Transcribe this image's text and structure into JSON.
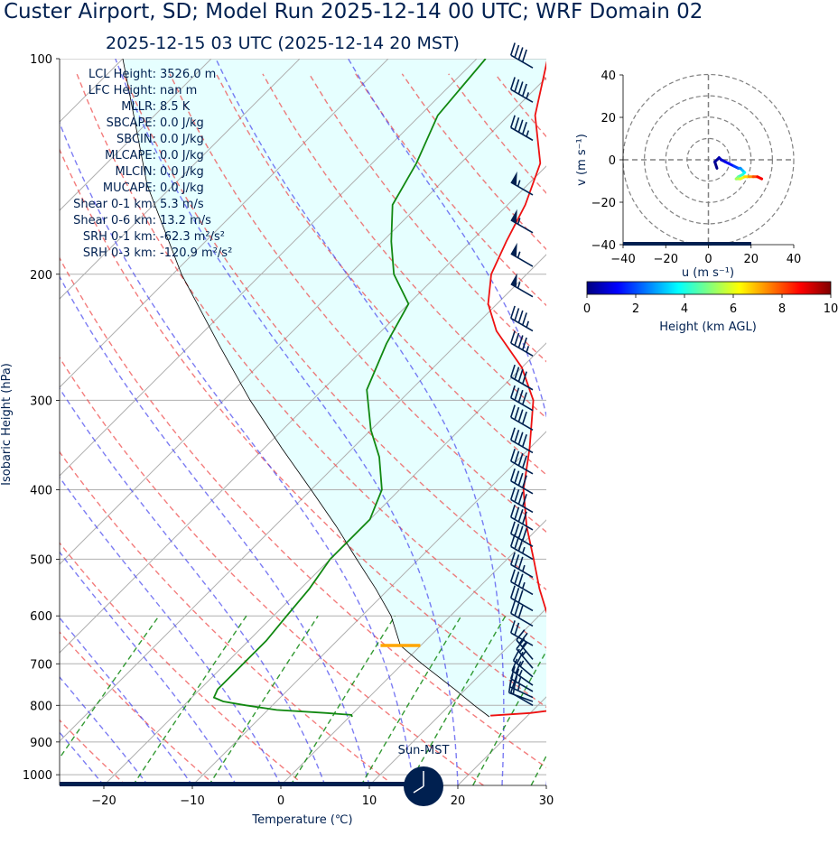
{
  "header": {
    "title": "Custer Airport, SD; Model Run 2025-12-14 00 UTC; WRF Domain 02",
    "subtitle": "2025-12-15 03 UTC  (2025-12-14 20 MST)"
  },
  "stats": [
    {
      "label": "LCL Height:",
      "value": "3526.0 m"
    },
    {
      "label": "LFC Height:",
      "value": "nan m"
    },
    {
      "label": "MLLR:",
      "value": "8.5 K"
    },
    {
      "label": "SBCAPE:",
      "value": "0.0 J/kg"
    },
    {
      "label": "SBCIN:",
      "value": "0.0 J/kg"
    },
    {
      "label": "MLCAPE:",
      "value": "0.0 J/kg"
    },
    {
      "label": "MLCIN:",
      "value": "0.0 J/kg"
    },
    {
      "label": "MUCAPE:",
      "value": "0.0 J/kg"
    },
    {
      "label": "Shear 0-1 km:",
      "value": "5.3 m/s"
    },
    {
      "label": "Shear 0-6 km:",
      "value": "13.2 m/s"
    },
    {
      "label": "SRH 0-1 km:",
      "value": "-62.3 m²/s²"
    },
    {
      "label": "SRH 0-3 km:",
      "value": "-120.9 m²/s²"
    }
  ],
  "clock_label": "Sun-MST",
  "colors": {
    "temperature": "#ee1111",
    "dewpoint": "#118811",
    "parcel": "#000000",
    "dry_adiabat": "#ee4444",
    "moist_adiabat": "#4444ee",
    "mixing_ratio": "#118811",
    "cape_shade": "#e6ffff",
    "lcl_marker": "#ffa500",
    "barb": "#002050",
    "text": "#002050"
  },
  "chart_data": [
    {
      "type": "line",
      "name": "skew-t",
      "xlabel": "Temperature (℃)",
      "ylabel": "Isobaric Height (hPa)",
      "xlim": [
        -25,
        30
      ],
      "ylim": [
        1035,
        100
      ],
      "y_scale": "log",
      "skew": 45,
      "xticks": [
        -20,
        -10,
        0,
        10,
        20,
        30
      ],
      "yticks": [
        100,
        200,
        300,
        400,
        500,
        600,
        700,
        800,
        900,
        1000
      ],
      "grid": true,
      "series": [
        {
          "key": "temperature",
          "p": [
            827,
            820,
            810,
            795,
            780,
            765,
            740,
            700,
            650,
            600,
            550,
            500,
            450,
            400,
            350,
            300,
            270,
            240,
            220,
            200,
            180,
            160,
            140,
            120,
            100
          ],
          "t": [
            15.8,
            20,
            23,
            25.2,
            25,
            23.5,
            21,
            18,
            14.5,
            11,
            7,
            3,
            -1.5,
            -6,
            -10,
            -15,
            -20,
            -27,
            -31,
            -34,
            -36,
            -38,
            -41,
            -47,
            -52
          ]
        },
        {
          "key": "dewpoint",
          "p": [
            830,
            825,
            820,
            812,
            800,
            790,
            780,
            760,
            700,
            650,
            600,
            550,
            500,
            470,
            440,
            400,
            360,
            330,
            290,
            250,
            220,
            200,
            180,
            160,
            140,
            120,
            100
          ],
          "t": [
            0.3,
            0,
            -3,
            -9,
            -13,
            -16,
            -17.5,
            -18,
            -18,
            -18,
            -18.5,
            -19,
            -20,
            -20,
            -20,
            -22,
            -26,
            -30,
            -35,
            -38,
            -40,
            -45,
            -49,
            -53,
            -55,
            -58,
            -59
          ]
        },
        {
          "key": "parcel",
          "p": [
            830,
            800,
            760,
            700,
            660,
            600,
            550,
            500,
            450,
            400,
            350,
            300,
            250,
            200,
            150,
            100
          ],
          "t": [
            15.8,
            12.8,
            8.8,
            2.2,
            -2.3,
            -6.7,
            -11.5,
            -17,
            -23,
            -30,
            -38,
            -47,
            -57,
            -69,
            -83,
            -100
          ]
        }
      ],
      "lcl": {
        "p": 660,
        "t": -2.3
      },
      "wind_barbs": [
        {
          "p": 800,
          "speed_kt": 10,
          "dir": 300
        },
        {
          "p": 790,
          "speed_kt": 20,
          "dir": 290
        },
        {
          "p": 780,
          "speed_kt": 25,
          "dir": 295
        },
        {
          "p": 765,
          "speed_kt": 25,
          "dir": 300
        },
        {
          "p": 750,
          "speed_kt": 25,
          "dir": 305
        },
        {
          "p": 730,
          "speed_kt": 25,
          "dir": 310
        },
        {
          "p": 710,
          "speed_kt": 25,
          "dir": 320
        },
        {
          "p": 690,
          "speed_kt": 25,
          "dir": 320
        },
        {
          "p": 660,
          "speed_kt": 20,
          "dir": 300
        },
        {
          "p": 620,
          "speed_kt": 30,
          "dir": 300
        },
        {
          "p": 590,
          "speed_kt": 30,
          "dir": 300
        },
        {
          "p": 560,
          "speed_kt": 35,
          "dir": 300
        },
        {
          "p": 530,
          "speed_kt": 35,
          "dir": 300
        },
        {
          "p": 500,
          "speed_kt": 35,
          "dir": 300
        },
        {
          "p": 480,
          "speed_kt": 40,
          "dir": 300
        },
        {
          "p": 455,
          "speed_kt": 40,
          "dir": 300
        },
        {
          "p": 430,
          "speed_kt": 40,
          "dir": 300
        },
        {
          "p": 405,
          "speed_kt": 40,
          "dir": 300
        },
        {
          "p": 380,
          "speed_kt": 40,
          "dir": 300
        },
        {
          "p": 355,
          "speed_kt": 40,
          "dir": 300
        },
        {
          "p": 330,
          "speed_kt": 40,
          "dir": 300
        },
        {
          "p": 310,
          "speed_kt": 40,
          "dir": 300
        },
        {
          "p": 290,
          "speed_kt": 40,
          "dir": 300
        },
        {
          "p": 260,
          "speed_kt": 45,
          "dir": 300
        },
        {
          "p": 240,
          "speed_kt": 45,
          "dir": 300
        },
        {
          "p": 215,
          "speed_kt": 55,
          "dir": 300
        },
        {
          "p": 195,
          "speed_kt": 55,
          "dir": 300
        },
        {
          "p": 175,
          "speed_kt": 55,
          "dir": 300
        },
        {
          "p": 155,
          "speed_kt": 55,
          "dir": 300
        },
        {
          "p": 130,
          "speed_kt": 45,
          "dir": 300
        },
        {
          "p": 115,
          "speed_kt": 45,
          "dir": 300
        },
        {
          "p": 103,
          "speed_kt": 40,
          "dir": 300
        }
      ]
    },
    {
      "type": "line",
      "name": "hodograph",
      "xlabel": "u (m s⁻¹)",
      "ylabel": "v (m s⁻¹)",
      "xlim": [
        -40,
        40
      ],
      "ylim": [
        -40,
        40
      ],
      "xticks": [
        -40,
        -20,
        0,
        20,
        40
      ],
      "yticks": [
        -40,
        -20,
        0,
        20,
        40
      ],
      "rings": [
        10,
        20,
        30,
        40
      ],
      "u": [
        4,
        3,
        5,
        6,
        8,
        10,
        12,
        14,
        15,
        16,
        17,
        16,
        14,
        13,
        15,
        17,
        19,
        21,
        23,
        25
      ],
      "v": [
        -4,
        -1,
        1,
        0,
        -1,
        -2,
        -3,
        -4,
        -4,
        -5,
        -6,
        -7,
        -8,
        -9,
        -9,
        -8,
        -8,
        -8,
        -8,
        -9
      ],
      "height_km": [
        0.1,
        0.3,
        0.5,
        0.8,
        1.1,
        1.4,
        1.8,
        2.2,
        2.7,
        3.2,
        3.7,
        4.2,
        4.8,
        5.4,
        6.0,
        6.6,
        7.3,
        8.0,
        8.8,
        9.6
      ]
    },
    {
      "type": "heatmap",
      "name": "colorbar",
      "label": "Height (km AGL)",
      "range": [
        0,
        10
      ],
      "ticks": [
        0,
        2,
        4,
        6,
        8,
        10
      ],
      "colormap": "jet"
    }
  ]
}
